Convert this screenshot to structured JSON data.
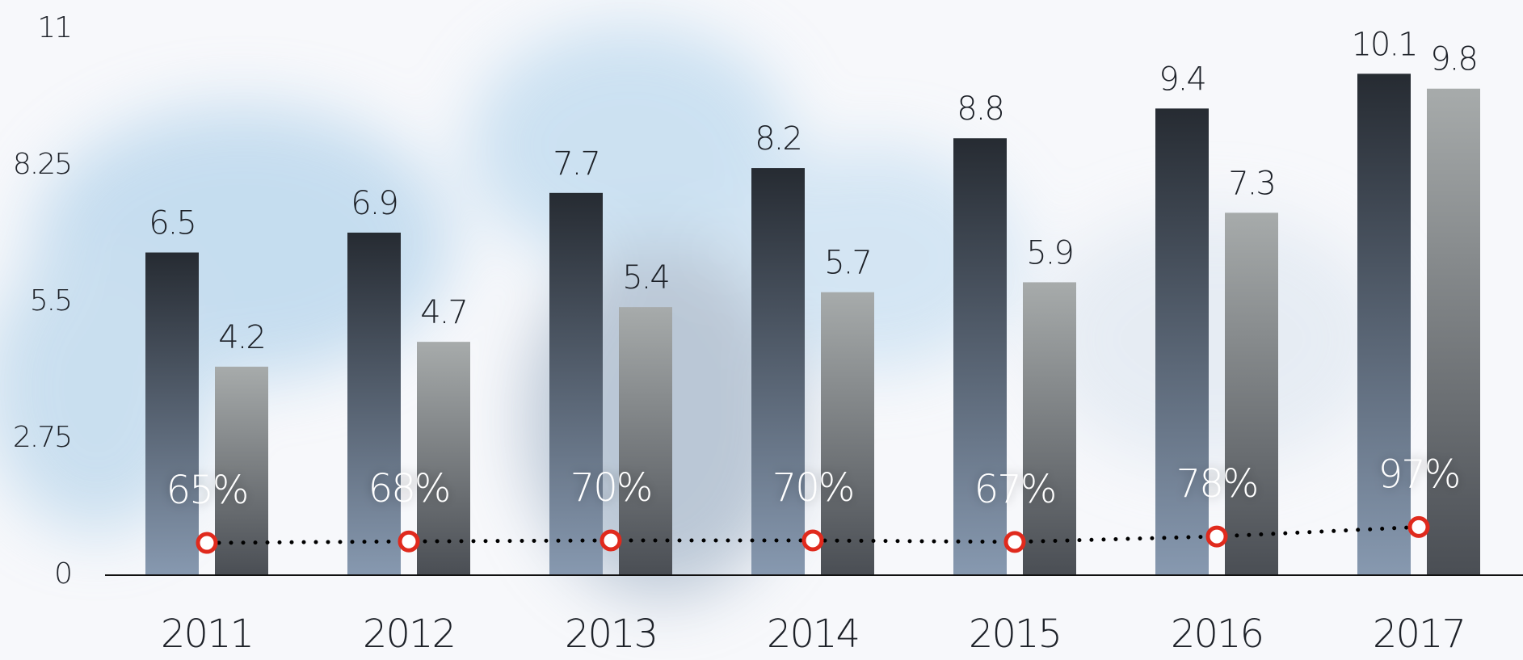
{
  "chart_data": {
    "type": "bar",
    "categories": [
      "2011",
      "2012",
      "2013",
      "2014",
      "2015",
      "2016",
      "2017"
    ],
    "series": [
      {
        "color": "#2b3038",
        "values": [
          6.5,
          6.9,
          7.7,
          8.2,
          8.8,
          9.4,
          10.1
        ]
      },
      {
        "color": "#a3a7a7",
        "values": [
          4.2,
          4.7,
          5.4,
          5.7,
          5.9,
          7.3,
          9.8
        ]
      },
      {
        "type": "line",
        "color": "#000000",
        "marker_color": "#e02a1d",
        "values": [
          0.65,
          0.68,
          0.7,
          0.7,
          0.67,
          0.78,
          0.97
        ],
        "value_labels": [
          "65%",
          "68%",
          "70%",
          "70%",
          "67%",
          "78%",
          "97%"
        ]
      }
    ],
    "ylim": [
      0,
      11
    ],
    "yticks": [
      0,
      2.75,
      5.5,
      8.25,
      11
    ],
    "grid": false
  }
}
